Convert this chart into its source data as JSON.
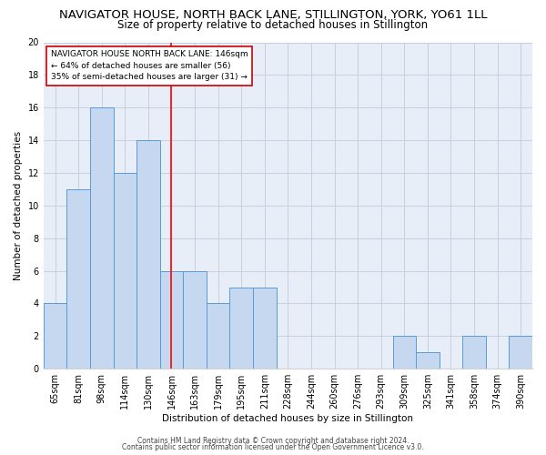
{
  "title": "NAVIGATOR HOUSE, NORTH BACK LANE, STILLINGTON, YORK, YO61 1LL",
  "subtitle": "Size of property relative to detached houses in Stillington",
  "xlabel": "Distribution of detached houses by size in Stillington",
  "ylabel": "Number of detached properties",
  "categories": [
    "65sqm",
    "81sqm",
    "98sqm",
    "114sqm",
    "130sqm",
    "146sqm",
    "163sqm",
    "179sqm",
    "195sqm",
    "211sqm",
    "228sqm",
    "244sqm",
    "260sqm",
    "276sqm",
    "293sqm",
    "309sqm",
    "325sqm",
    "341sqm",
    "358sqm",
    "374sqm",
    "390sqm"
  ],
  "values": [
    4,
    11,
    16,
    12,
    14,
    6,
    6,
    4,
    5,
    5,
    0,
    0,
    0,
    0,
    0,
    2,
    1,
    0,
    2,
    0,
    2
  ],
  "bar_color": "#c5d8f0",
  "bar_edge_color": "#5b9bd5",
  "redline_index": 5,
  "ylim": [
    0,
    20
  ],
  "yticks": [
    0,
    2,
    4,
    6,
    8,
    10,
    12,
    14,
    16,
    18,
    20
  ],
  "annotation_title": "NAVIGATOR HOUSE NORTH BACK LANE: 146sqm",
  "annotation_line1": "← 64% of detached houses are smaller (56)",
  "annotation_line2": "35% of semi-detached houses are larger (31) →",
  "annotation_box_color": "#ffffff",
  "annotation_box_edge": "#cc0000",
  "footer1": "Contains HM Land Registry data © Crown copyright and database right 2024.",
  "footer2": "Contains public sector information licensed under the Open Government Licence v3.0.",
  "background_color": "#ffffff",
  "plot_bg_color": "#e8eef8",
  "grid_color": "#c8d0e0",
  "title_fontsize": 9.5,
  "subtitle_fontsize": 8.5,
  "axis_label_fontsize": 7.5,
  "tick_fontsize": 7,
  "annotation_fontsize": 6.5,
  "footer_fontsize": 5.5
}
